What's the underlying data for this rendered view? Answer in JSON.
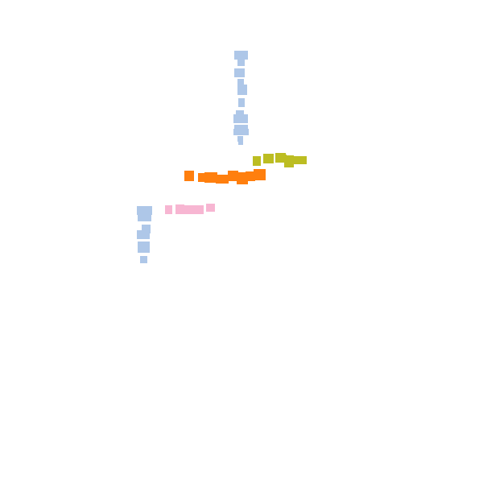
{
  "clusters": [
    {
      "name": "light-blue-vertical-cluster-top",
      "color": "#aec7e8",
      "count": 12
    },
    {
      "name": "olive-horizontal-cluster",
      "color": "#bcbd22",
      "count": 6
    },
    {
      "name": "orange-horizontal-cluster",
      "color": "#ff7f0e",
      "count": 9
    },
    {
      "name": "pink-horizontal-cluster",
      "color": "#f7b6d2",
      "count": 5
    },
    {
      "name": "light-blue-vertical-cluster-left",
      "color": "#aec7e8",
      "count": 7
    }
  ]
}
